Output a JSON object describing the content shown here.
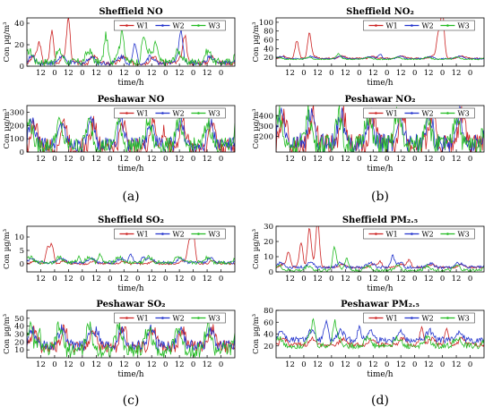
{
  "panel_labels": [
    "(a)",
    "(b)",
    "(c)",
    "(d)"
  ],
  "time_label": "time/h",
  "legend_labels": [
    "W1",
    "W2",
    "W3"
  ],
  "series_colors": {
    "W1": "#cc2222",
    "W2": "#2233cc",
    "W3": "#22bb22"
  },
  "x_ticks": [
    "12",
    "0",
    "12",
    "0",
    "12",
    "0",
    "12",
    "0",
    "12",
    "0",
    "12",
    "0",
    "12",
    "0"
  ],
  "chart_data": [
    {
      "id": "sheffield-no",
      "type": "line",
      "title": "Sheffield NO",
      "ylabel": "Con µg/m³",
      "ylim": [
        0,
        45
      ],
      "yticks": [
        0,
        20,
        40
      ],
      "xlabel": "time/h",
      "series": [
        {
          "name": "W1",
          "base": 3,
          "amp": 6,
          "peaks": [
            [
              0.06,
              18
            ],
            [
              0.12,
              30
            ],
            [
              0.2,
              40
            ],
            [
              0.76,
              20
            ]
          ]
        },
        {
          "name": "W2",
          "base": 3,
          "amp": 6,
          "peaks": [
            [
              0.52,
              18
            ],
            [
              0.74,
              25
            ]
          ]
        },
        {
          "name": "W3",
          "base": 4,
          "amp": 10,
          "peaks": [
            [
              0.38,
              25
            ],
            [
              0.46,
              24
            ],
            [
              0.56,
              22
            ],
            [
              0.62,
              18
            ]
          ]
        }
      ]
    },
    {
      "id": "sheffield-no2",
      "type": "line",
      "title": "Sheffield NO₂",
      "ylabel": "Con µg/m³",
      "ylim": [
        0,
        110
      ],
      "yticks": [
        20,
        40,
        60,
        80,
        100
      ],
      "xlabel": "time/h",
      "series": [
        {
          "name": "W1",
          "base": 18,
          "amp": 5,
          "peaks": [
            [
              0.1,
              40
            ],
            [
              0.16,
              55
            ],
            [
              0.78,
              55
            ],
            [
              0.8,
              105
            ]
          ]
        },
        {
          "name": "W2",
          "base": 17,
          "amp": 5,
          "peaks": [
            [
              0.5,
              10
            ]
          ]
        },
        {
          "name": "W3",
          "base": 16,
          "amp": 4,
          "peaks": [
            [
              0.3,
              8
            ]
          ]
        }
      ]
    },
    {
      "id": "peshawar-no",
      "type": "line",
      "title": "Peshawar NO",
      "ylabel": "Con µg/m³",
      "ylim": [
        0,
        350
      ],
      "yticks": [
        0,
        100,
        200,
        300
      ],
      "xlabel": "time/h",
      "series": [
        {
          "name": "W1",
          "base": 40,
          "amp": 180,
          "peaks": [
            [
              0.66,
              120
            ]
          ]
        },
        {
          "name": "W2",
          "base": 60,
          "amp": 160,
          "peaks": []
        },
        {
          "name": "W3",
          "base": 50,
          "amp": 170,
          "peaks": []
        }
      ]
    },
    {
      "id": "peshawar-no2",
      "type": "line",
      "title": "Peshawar NO₂",
      "ylabel": "Con µg/m³",
      "ylim": [
        50,
        500
      ],
      "yticks": [
        200,
        300,
        400
      ],
      "xlabel": "time/h",
      "series": [
        {
          "name": "W1",
          "base": 130,
          "amp": 280,
          "peaks": []
        },
        {
          "name": "W2",
          "base": 140,
          "amp": 270,
          "peaks": []
        },
        {
          "name": "W3",
          "base": 120,
          "amp": 300,
          "peaks": []
        }
      ]
    },
    {
      "id": "sheffield-so2",
      "type": "line",
      "title": "Sheffield SO₂",
      "ylabel": "Con µg/m³",
      "ylim": [
        -3,
        14
      ],
      "yticks": [
        0,
        5,
        10
      ],
      "xlabel": "time/h",
      "series": [
        {
          "name": "W1",
          "base": 0,
          "amp": 1,
          "peaks": [
            [
              0.1,
              6
            ],
            [
              0.12,
              7
            ],
            [
              0.78,
              8
            ],
            [
              0.8,
              12
            ]
          ]
        },
        {
          "name": "W2",
          "base": 0.5,
          "amp": 1.5,
          "peaks": [
            [
              0.5,
              3
            ],
            [
              0.56,
              2
            ]
          ]
        },
        {
          "name": "W3",
          "base": 0.5,
          "amp": 2,
          "peaks": [
            [
              0.25,
              2
            ],
            [
              0.35,
              3
            ]
          ]
        }
      ]
    },
    {
      "id": "sheffield-pm25",
      "type": "line",
      "title": "Sheffield PM₂.₅",
      "ylabel": "Con µg/m³",
      "ylim": [
        0,
        30
      ],
      "yticks": [
        0,
        10,
        20,
        30
      ],
      "xlabel": "time/h",
      "series": [
        {
          "name": "W1",
          "base": 3,
          "amp": 2,
          "peaks": [
            [
              0.06,
              10
            ],
            [
              0.12,
              16
            ],
            [
              0.16,
              25
            ],
            [
              0.2,
              30
            ],
            [
              0.5,
              4
            ],
            [
              0.64,
              5
            ]
          ]
        },
        {
          "name": "W2",
          "base": 3,
          "amp": 3,
          "peaks": [
            [
              0.56,
              8
            ]
          ]
        },
        {
          "name": "W3",
          "base": 1,
          "amp": 3,
          "peaks": [
            [
              0.28,
              14
            ],
            [
              0.34,
              8
            ]
          ]
        }
      ]
    },
    {
      "id": "peshawar-so2",
      "type": "line",
      "title": "Peshawar SO₂",
      "ylabel": "Con µg/m³",
      "ylim": [
        0,
        60
      ],
      "yticks": [
        10,
        20,
        30,
        40,
        50
      ],
      "xlabel": "time/h",
      "series": [
        {
          "name": "W1",
          "base": 14,
          "amp": 22,
          "peaks": []
        },
        {
          "name": "W2",
          "base": 16,
          "amp": 20,
          "peaks": [
            [
              0.34,
              18
            ]
          ]
        },
        {
          "name": "W3",
          "base": 10,
          "amp": 28,
          "peaks": [
            [
              0.06,
              20
            ]
          ]
        }
      ]
    },
    {
      "id": "peshawar-pm25",
      "type": "line",
      "title": "Peshawar PM₂.₅",
      "ylabel": "Con µg/m³",
      "ylim": [
        0,
        80
      ],
      "yticks": [
        20,
        40,
        60,
        80
      ],
      "xlabel": "time/h",
      "series": [
        {
          "name": "W1",
          "base": 22,
          "amp": 10,
          "peaks": [
            [
              0.7,
              30
            ],
            [
              0.82,
              25
            ]
          ]
        },
        {
          "name": "W2",
          "base": 30,
          "amp": 15,
          "peaks": [
            [
              0.24,
              30
            ],
            [
              0.4,
              20
            ]
          ]
        },
        {
          "name": "W3",
          "base": 20,
          "amp": 14,
          "peaks": [
            [
              0.18,
              40
            ],
            [
              0.28,
              35
            ]
          ]
        }
      ]
    }
  ]
}
